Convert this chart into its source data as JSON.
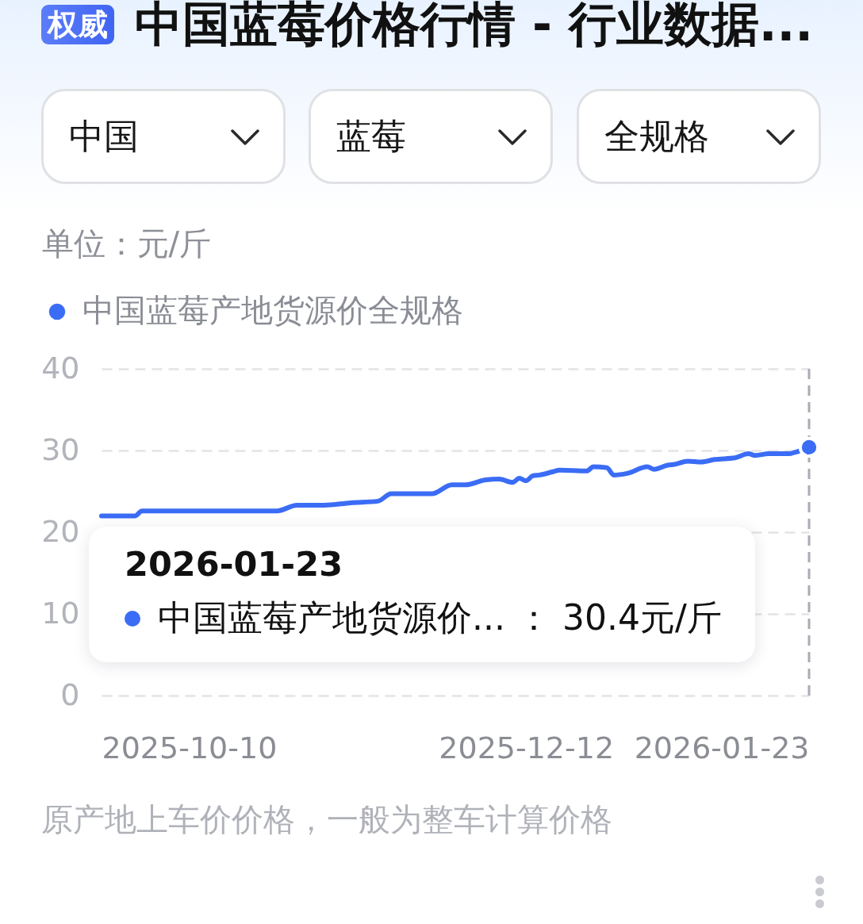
{
  "chart_data": {
    "type": "line",
    "title": "中国蓝莓价格行情 - 行业数据...",
    "ylabel": "单位：元/斤",
    "x": [
      "2025-10-10",
      "2025-10-15",
      "2025-10-16",
      "2025-11-05",
      "2025-11-08",
      "2025-11-12",
      "2025-11-16",
      "2025-11-20",
      "2025-11-22",
      "2025-11-28",
      "2025-12-01",
      "2025-12-03",
      "2025-12-06",
      "2025-12-08",
      "2025-12-10",
      "2025-12-11",
      "2025-12-12",
      "2025-12-13",
      "2025-12-14",
      "2025-12-16",
      "2025-12-17",
      "2025-12-21",
      "2025-12-22",
      "2025-12-24",
      "2025-12-25",
      "2025-12-27",
      "2025-12-30",
      "2025-12-31",
      "2026-01-02",
      "2026-01-03",
      "2026-01-05",
      "2026-01-07",
      "2026-01-09",
      "2026-01-12",
      "2026-01-14",
      "2026-01-15",
      "2026-01-17",
      "2026-01-20",
      "2026-01-21",
      "2026-01-23"
    ],
    "series": [
      {
        "name": "中国蓝莓产地货源价全规格",
        "color": "#3b6cf5",
        "values": [
          22.0,
          22.0,
          22.6,
          22.6,
          23.3,
          23.3,
          23.6,
          23.8,
          24.7,
          24.7,
          25.8,
          25.8,
          26.4,
          26.5,
          26.1,
          26.6,
          26.3,
          26.9,
          27.0,
          27.4,
          27.6,
          27.5,
          28.0,
          27.9,
          27.0,
          27.2,
          28.0,
          27.7,
          28.2,
          28.3,
          28.7,
          28.6,
          28.9,
          29.1,
          29.6,
          29.4,
          29.6,
          29.6,
          29.8,
          30.4
        ]
      },
      {
        "type": "scatter",
        "x": [
          "2026-01-23"
        ],
        "color": "#3b6cf5",
        "values": [
          30.4
        ]
      }
    ],
    "xlim": [
      "2025-10-10",
      "2026-01-23"
    ],
    "xticks": [
      "2025-10-10",
      "2025-12-12",
      "2026-01-23"
    ],
    "ylim": [
      0,
      40
    ],
    "yticks": [
      0,
      10,
      20,
      30,
      40
    ],
    "grid": "y",
    "legend": "top left",
    "line_style": "solid",
    "ref_lines": [
      {
        "axis": "x",
        "value": "2026-01-23",
        "color": "#a9acb3",
        "line_style": "dashed"
      }
    ],
    "annotations": [
      "权威",
      "中国",
      "蓝莓",
      "全规格",
      "原产地上车价价格，一般为整车计算价格",
      "2026-01-23",
      "中国蓝莓产地货源价... ： 30.4元/斤"
    ]
  }
}
